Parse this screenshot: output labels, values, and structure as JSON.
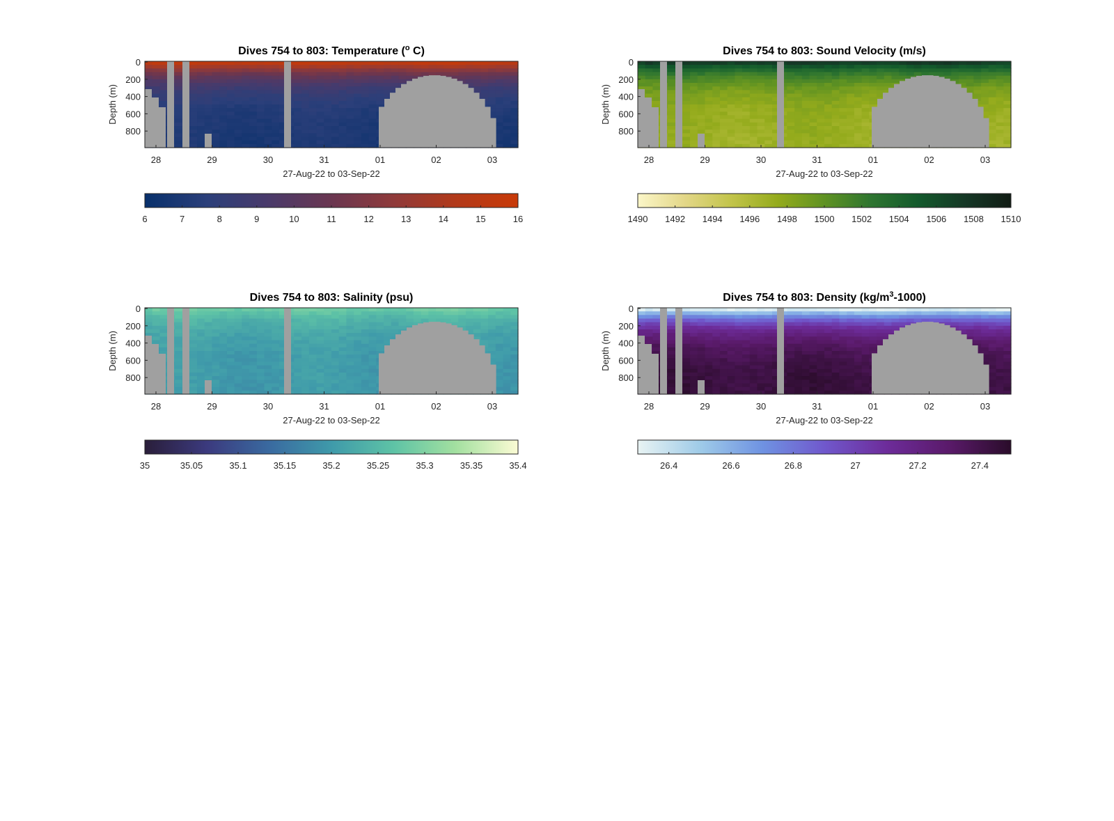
{
  "figure": {
    "xlabel": "27-Aug-22 to 03-Sep-22",
    "ylabel": "Depth (m)",
    "x_ticks": [
      "28",
      "29",
      "30",
      "31",
      "01",
      "02",
      "03"
    ],
    "y_ticks": [
      "0",
      "200",
      "400",
      "600",
      "800"
    ],
    "missing_color": "#a0a0a0"
  },
  "chart_data": [
    {
      "type": "heatmap",
      "title": "Dives 754 to 803: Temperature (° C)",
      "title_pre": "Dives 754 to 803: Temperature (",
      "title_sup": "o",
      "title_post": " C)",
      "xlabel": "27-Aug-22 to 03-Sep-22",
      "ylabel": "Depth (m)",
      "xlim": [
        "27-Aug-22",
        "03-Sep-22"
      ],
      "ylim": [
        1000,
        0
      ],
      "y_reversed": true,
      "variable": "temperature",
      "units": "° C",
      "surface_value": 15.2,
      "bottom_value": 6.9,
      "colorbar": {
        "min": 6,
        "max": 16,
        "ticks": [
          6,
          7,
          8,
          9,
          10,
          11,
          12,
          13,
          14,
          15,
          16
        ],
        "tick_labels": [
          "6",
          "7",
          "8",
          "9",
          "10",
          "11",
          "12",
          "13",
          "14",
          "15",
          "16"
        ],
        "colors": [
          "#08306b",
          "#2b3f7a",
          "#4a3a6a",
          "#6a3650",
          "#8f3a3a",
          "#b23a1a",
          "#c83a08"
        ]
      }
    },
    {
      "type": "heatmap",
      "title": "Dives 754 to 803: Sound Velocity (m/s)",
      "title_pre": "Dives 754 to 803: Sound Velocity (m/s)",
      "title_sup": "",
      "title_post": "",
      "xlabel": "27-Aug-22 to 03-Sep-22",
      "ylabel": "Depth (m)",
      "xlim": [
        "27-Aug-22",
        "03-Sep-22"
      ],
      "ylim": [
        1000,
        0
      ],
      "y_reversed": true,
      "variable": "sound_velocity",
      "units": "m/s",
      "surface_value": 1507,
      "bottom_value": 1497,
      "colorbar": {
        "min": 1490,
        "max": 1510,
        "ticks": [
          1490,
          1492,
          1494,
          1496,
          1498,
          1500,
          1502,
          1504,
          1506,
          1508,
          1510
        ],
        "tick_labels": [
          "1490",
          "1492",
          "1494",
          "1496",
          "1498",
          "1500",
          "1502",
          "1504",
          "1506",
          "1508",
          "1510"
        ],
        "colors": [
          "#fbf6c8",
          "#e3d788",
          "#c2c44a",
          "#94ab1c",
          "#5f9222",
          "#2e7530",
          "#135a2c",
          "#153826",
          "#111c14"
        ]
      }
    },
    {
      "type": "heatmap",
      "title": "Dives 754 to 803: Salinity (psu)",
      "title_pre": "Dives 754 to 803: Salinity (psu)",
      "title_sup": "",
      "title_post": "",
      "xlabel": "27-Aug-22 to 03-Sep-22",
      "ylabel": "Depth (m)",
      "xlim": [
        "27-Aug-22",
        "03-Sep-22"
      ],
      "ylim": [
        1000,
        0
      ],
      "y_reversed": true,
      "variable": "salinity",
      "units": "psu",
      "surface_value": 35.28,
      "bottom_value": 35.2,
      "colorbar": {
        "min": 35,
        "max": 35.4,
        "ticks": [
          35,
          35.05,
          35.1,
          35.15,
          35.2,
          35.25,
          35.3,
          35.35,
          35.4
        ],
        "tick_labels": [
          "35",
          "35.05",
          "35.1",
          "35.15",
          "35.2",
          "35.25",
          "35.3",
          "35.35",
          "35.4"
        ],
        "colors": [
          "#2a1e3a",
          "#3b3a7e",
          "#3a6aa0",
          "#3f9aaa",
          "#5ec3a6",
          "#a3e0a0",
          "#fbfbd4"
        ]
      }
    },
    {
      "type": "heatmap",
      "title": "Dives 754 to 803: Density (kg/m³-1000)",
      "title_pre": "Dives 754 to 803: Density (kg/m",
      "title_sup": "3",
      "title_post": "-1000)",
      "xlabel": "27-Aug-22 to 03-Sep-22",
      "ylabel": "Depth (m)",
      "xlim": [
        "27-Aug-22",
        "03-Sep-22"
      ],
      "ylim": [
        1000,
        0
      ],
      "y_reversed": true,
      "variable": "density",
      "units": "kg/m3-1000",
      "surface_value": 26.35,
      "bottom_value": 27.45,
      "colorbar": {
        "min": 26.3,
        "max": 27.5,
        "ticks": [
          26.4,
          26.6,
          26.8,
          27,
          27.2,
          27.4
        ],
        "tick_labels": [
          "26.4",
          "26.6",
          "26.8",
          "27",
          "27.2",
          "27.4"
        ],
        "colors": [
          "#e8f3f3",
          "#9fcbe8",
          "#6f93e2",
          "#7058cc",
          "#6d2c9a",
          "#5a1a6a",
          "#2a0c2a"
        ]
      }
    }
  ]
}
